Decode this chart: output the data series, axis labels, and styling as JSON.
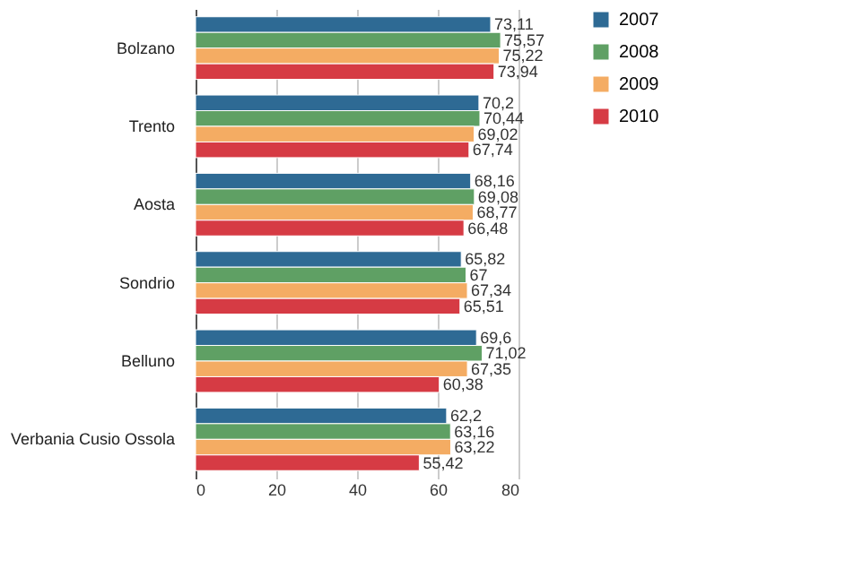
{
  "chart_data": {
    "type": "bar",
    "orientation": "horizontal",
    "categories": [
      "Bolzano",
      "Trento",
      "Aosta",
      "Sondrio",
      "Belluno",
      "Verbania Cusio Ossola"
    ],
    "series": [
      {
        "name": "2007",
        "color": "#2e6a94",
        "values": [
          73.11,
          70.2,
          68.16,
          65.82,
          69.6,
          62.2
        ],
        "value_labels": [
          "73,11",
          "70,2",
          "68,16",
          "65,82",
          "69,6",
          "62,2"
        ]
      },
      {
        "name": "2008",
        "color": "#5fa064",
        "values": [
          75.57,
          70.44,
          69.08,
          67,
          71.02,
          63.16
        ],
        "value_labels": [
          "75,57",
          "70,44",
          "69,08",
          "67",
          "71,02",
          "63,16"
        ]
      },
      {
        "name": "2009",
        "color": "#f4ac63",
        "values": [
          75.22,
          69.02,
          68.77,
          67.34,
          67.35,
          63.22
        ],
        "value_labels": [
          "75,22",
          "69,02",
          "68,77",
          "67,34",
          "67,35",
          "63,22"
        ]
      },
      {
        "name": "2010",
        "color": "#d63b44",
        "values": [
          73.94,
          67.74,
          66.48,
          65.51,
          60.38,
          55.42
        ],
        "value_labels": [
          "73,94",
          "67,74",
          "66,48",
          "65,51",
          "60,38",
          "55,42"
        ]
      }
    ],
    "xlim": [
      0,
      80
    ],
    "xticks": [
      0,
      20,
      40,
      60,
      80
    ],
    "grid": "x",
    "legend": "right"
  }
}
